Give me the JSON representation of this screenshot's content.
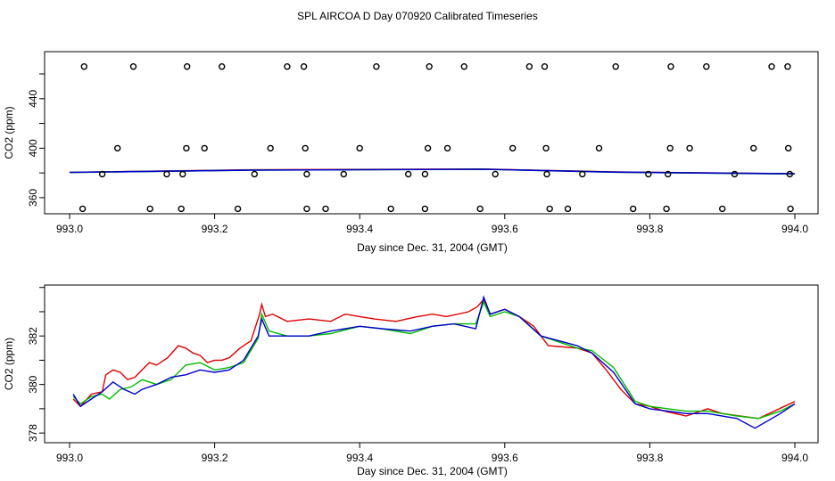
{
  "title": "SPL AIRCOA D  Day 070920  Calibrated Timeseries",
  "colors": {
    "red": "#dd0000",
    "green": "#00bb00",
    "blue": "#0000cc",
    "axis": "#000000"
  },
  "chart_data": [
    {
      "type": "scatter",
      "title": "",
      "xlabel": "Day since Dec. 31, 2004 (GMT)",
      "ylabel": "CO2 (ppm)",
      "xlim": [
        993.0,
        994.0
      ],
      "ylim": [
        347,
        478
      ],
      "xticks": [
        "993.0",
        "993.2",
        "993.4",
        "993.6",
        "993.8",
        "994.0"
      ],
      "xtick_values": [
        993.0,
        993.2,
        993.4,
        993.6,
        993.8,
        994.0
      ],
      "yticks": [
        "360",
        "400",
        "440"
      ],
      "ytick_values": [
        360,
        400,
        440
      ],
      "points": {
        "x": [
          993.02,
          993.088,
          993.162,
          993.21,
          993.3,
          993.323,
          993.423,
          993.496,
          993.544,
          993.634,
          993.655,
          993.753,
          993.829,
          993.878,
          993.968,
          993.99,
          993.066,
          993.161,
          993.186,
          993.277,
          993.325,
          993.4,
          993.494,
          993.521,
          993.611,
          993.657,
          993.73,
          993.828,
          993.855,
          993.943,
          993.991,
          993.045,
          993.134,
          993.156,
          993.255,
          993.327,
          993.378,
          993.467,
          993.49,
          993.587,
          993.658,
          993.707,
          993.798,
          993.825,
          993.917,
          993.993,
          993.018,
          993.111,
          993.154,
          993.232,
          993.327,
          993.353,
          993.443,
          993.49,
          993.566,
          993.662,
          993.687,
          993.777,
          993.823,
          993.9,
          993.994
        ],
        "y": [
          466,
          466,
          466,
          466,
          466,
          466,
          466,
          466,
          466,
          466,
          466,
          466,
          466,
          466,
          466,
          466,
          400,
          400,
          400,
          400,
          400,
          400,
          400,
          400,
          400,
          400,
          400,
          400,
          400,
          400,
          400,
          379,
          379,
          379,
          379,
          379,
          379,
          379,
          379,
          379,
          379,
          379,
          379,
          379,
          379,
          379,
          351,
          351,
          351,
          351,
          351,
          351,
          351,
          351,
          351,
          351,
          351,
          351,
          351,
          351,
          351
        ]
      },
      "series": [
        {
          "name": "blue",
          "x": [
            993.0,
            993.25,
            993.57,
            993.75,
            994.0
          ],
          "y": [
            380.5,
            382.3,
            383.0,
            380.7,
            379.3
          ]
        },
        {
          "name": "red",
          "x": [
            993.0,
            993.25,
            993.57,
            993.75,
            994.0
          ],
          "y": [
            380.5,
            382.5,
            383.1,
            380.8,
            379.3
          ]
        },
        {
          "name": "green",
          "x": [
            993.0,
            993.25,
            993.57,
            993.75,
            994.0
          ],
          "y": [
            380.4,
            382.3,
            383.0,
            380.6,
            379.2
          ]
        }
      ]
    },
    {
      "type": "line",
      "title": "",
      "xlabel": "Day since Dec. 31, 2004 (GMT)",
      "ylabel": "CO2 (ppm)",
      "xlim": [
        993.0,
        994.0
      ],
      "ylim": [
        377.6,
        384.1
      ],
      "xticks": [
        "993.0",
        "993.2",
        "993.4",
        "993.6",
        "993.8",
        "994.0"
      ],
      "xtick_values": [
        993.0,
        993.2,
        993.4,
        993.6,
        993.8,
        994.0
      ],
      "yticks": [
        "378",
        "380",
        "382"
      ],
      "ytick_values": [
        378,
        380,
        382
      ],
      "series": [
        {
          "name": "red",
          "x": [
            993.005,
            993.015,
            993.03,
            993.045,
            993.05,
            993.06,
            993.07,
            993.08,
            993.09,
            993.1,
            993.11,
            993.12,
            993.135,
            993.15,
            993.16,
            993.17,
            993.18,
            993.19,
            993.2,
            993.21,
            993.22,
            993.235,
            993.25,
            993.262,
            993.265,
            993.27,
            993.28,
            993.3,
            993.33,
            993.36,
            993.38,
            993.4,
            993.42,
            993.45,
            993.48,
            993.5,
            993.52,
            993.55,
            993.562,
            993.571,
            993.58,
            993.6,
            993.62,
            993.64,
            993.66,
            993.7,
            993.72,
            993.74,
            993.76,
            993.78,
            993.8,
            993.82,
            993.85,
            993.88,
            993.9,
            993.95,
            994.0
          ],
          "y": [
            379.4,
            379.1,
            379.6,
            379.7,
            380.4,
            380.6,
            380.5,
            380.2,
            380.3,
            380.6,
            380.9,
            380.8,
            381.1,
            381.6,
            381.5,
            381.3,
            381.2,
            380.9,
            381.0,
            381.0,
            381.1,
            381.5,
            381.8,
            382.9,
            383.3,
            382.8,
            382.9,
            382.6,
            382.7,
            382.6,
            382.9,
            382.8,
            382.7,
            382.6,
            382.8,
            382.9,
            382.8,
            383.0,
            383.2,
            383.5,
            382.9,
            383.1,
            382.8,
            382.4,
            381.6,
            381.5,
            381.3,
            380.6,
            379.8,
            379.2,
            379.1,
            378.9,
            378.7,
            379.0,
            378.8,
            378.6,
            379.3
          ]
        },
        {
          "name": "green",
          "x": [
            993.005,
            993.015,
            993.03,
            993.045,
            993.055,
            993.07,
            993.085,
            993.1,
            993.12,
            993.14,
            993.16,
            993.18,
            993.2,
            993.22,
            993.24,
            993.26,
            993.265,
            993.275,
            993.3,
            993.33,
            993.36,
            993.4,
            993.43,
            993.47,
            993.5,
            993.53,
            993.56,
            993.571,
            993.58,
            993.6,
            993.62,
            993.65,
            993.7,
            993.72,
            993.75,
            993.78,
            993.8,
            993.85,
            993.88,
            993.92,
            993.95,
            993.98,
            994.0
          ],
          "y": [
            379.5,
            379.2,
            379.5,
            379.6,
            379.4,
            379.8,
            379.9,
            380.2,
            380.0,
            380.2,
            380.8,
            380.9,
            380.6,
            380.7,
            380.9,
            381.9,
            382.9,
            382.2,
            382.0,
            382.0,
            382.1,
            382.4,
            382.3,
            382.1,
            382.4,
            382.5,
            382.5,
            383.4,
            382.8,
            383.0,
            382.8,
            382.0,
            381.5,
            381.4,
            380.7,
            379.3,
            379.1,
            378.9,
            378.9,
            378.7,
            378.6,
            378.9,
            379.2
          ]
        },
        {
          "name": "blue",
          "x": [
            993.005,
            993.015,
            993.03,
            993.045,
            993.06,
            993.075,
            993.09,
            993.1,
            993.12,
            993.14,
            993.16,
            993.18,
            993.2,
            993.22,
            993.24,
            993.26,
            993.265,
            993.275,
            993.3,
            993.33,
            993.36,
            993.4,
            993.43,
            993.47,
            993.5,
            993.53,
            993.56,
            993.571,
            993.58,
            993.6,
            993.62,
            993.65,
            993.7,
            993.72,
            993.75,
            993.78,
            993.8,
            993.85,
            993.88,
            993.92,
            993.945,
            993.98,
            994.0
          ],
          "y": [
            379.6,
            379.1,
            379.4,
            379.7,
            380.1,
            379.8,
            379.6,
            379.8,
            380.0,
            380.3,
            380.4,
            380.6,
            380.5,
            380.6,
            381.0,
            382.0,
            382.7,
            382.0,
            382.0,
            382.0,
            382.2,
            382.4,
            382.3,
            382.2,
            382.4,
            382.5,
            382.3,
            383.6,
            382.9,
            383.1,
            382.8,
            382.0,
            381.6,
            381.3,
            380.5,
            379.2,
            379.0,
            378.8,
            378.8,
            378.6,
            378.2,
            378.8,
            379.2
          ]
        }
      ]
    }
  ]
}
